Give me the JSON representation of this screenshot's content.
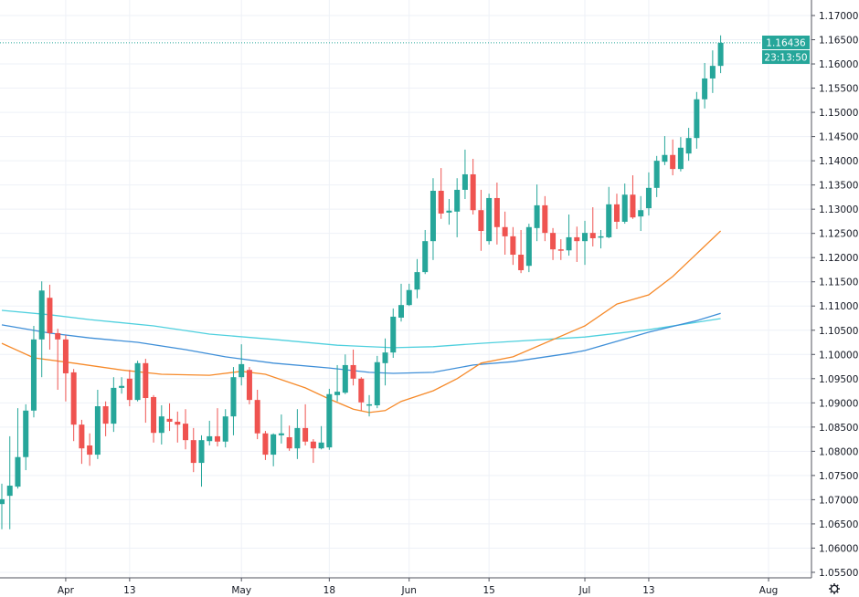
{
  "chart_data": {
    "type": "candlestick",
    "title": "",
    "xlabel": "",
    "ylabel": "",
    "ylim": [
      1.0545,
      1.1725
    ],
    "grid": true,
    "colors": {
      "up": "#26a69a",
      "down": "#ef5350",
      "ma_orange": "#f68a2a",
      "ma_blue": "#3f8fd8",
      "ma_cyan": "#4fd0de",
      "grid": "#eef1f7",
      "axis": "#50535e",
      "last_price": "#26a69a"
    },
    "y_ticks": [
      "1.05500",
      "1.06000",
      "1.06500",
      "1.07000",
      "1.07500",
      "1.08000",
      "1.08500",
      "1.09000",
      "1.09500",
      "1.10000",
      "1.10500",
      "1.11000",
      "1.11500",
      "1.12000",
      "1.12500",
      "1.13000",
      "1.13500",
      "1.14000",
      "1.14500",
      "1.15000",
      "1.15500",
      "1.16000",
      "1.16500",
      "1.17000"
    ],
    "x_ticks": [
      {
        "label": "Apr",
        "date": "04-01"
      },
      {
        "label": "13",
        "date": "04-13"
      },
      {
        "label": "May",
        "date": "05-01"
      },
      {
        "label": "18",
        "date": "05-18"
      },
      {
        "label": "Jun",
        "date": "06-01"
      },
      {
        "label": "15",
        "date": "06-15"
      },
      {
        "label": "Jul",
        "date": "07-01"
      },
      {
        "label": "13",
        "date": "07-13"
      },
      {
        "label": "Aug",
        "date": "08-03"
      }
    ],
    "candles_fields": [
      "date",
      "open",
      "high",
      "low",
      "close"
    ],
    "candles": [
      [
        "03-20",
        1.0691,
        1.0733,
        1.0639,
        1.0701
      ],
      [
        "03-23",
        1.0708,
        1.0831,
        1.0639,
        1.0729
      ],
      [
        "03-24",
        1.0727,
        1.0889,
        1.0723,
        1.0788
      ],
      [
        "03-25",
        1.0788,
        1.0897,
        1.0761,
        1.0884
      ],
      [
        "03-26",
        1.0884,
        1.1059,
        1.087,
        1.1031
      ],
      [
        "03-27",
        1.1031,
        1.1151,
        1.0953,
        1.1132
      ],
      [
        "03-30",
        1.1117,
        1.1144,
        1.101,
        1.1044
      ],
      [
        "03-31",
        1.1044,
        1.1053,
        1.0927,
        1.1031
      ],
      [
        "04-01",
        1.1031,
        1.104,
        1.0903,
        1.0961
      ],
      [
        "04-02",
        1.0963,
        1.097,
        1.0821,
        1.0855
      ],
      [
        "04-03",
        1.0855,
        1.0865,
        1.0774,
        1.0806
      ],
      [
        "04-06",
        1.0812,
        1.0837,
        1.077,
        1.0793
      ],
      [
        "04-07",
        1.0793,
        1.0927,
        1.0784,
        1.0893
      ],
      [
        "04-08",
        1.0893,
        1.0903,
        1.0831,
        1.0857
      ],
      [
        "04-09",
        1.0857,
        1.0953,
        1.084,
        1.0931
      ],
      [
        "04-10",
        1.0931,
        1.0953,
        1.0919,
        1.0935
      ],
      [
        "04-13",
        1.095,
        1.0968,
        1.0893,
        1.0906
      ],
      [
        "04-14",
        1.0906,
        1.0987,
        1.0903,
        1.0982
      ],
      [
        "04-15",
        1.0982,
        1.0991,
        1.0859,
        1.091
      ],
      [
        "04-16",
        1.0912,
        1.0916,
        1.0818,
        1.0838
      ],
      [
        "04-17",
        1.0838,
        1.0895,
        1.0814,
        1.0872
      ],
      [
        "04-20",
        1.0867,
        1.0899,
        1.0842,
        1.0861
      ],
      [
        "04-21",
        1.0861,
        1.0882,
        1.0818,
        1.0855
      ],
      [
        "04-22",
        1.0857,
        1.0887,
        1.0804,
        1.0823
      ],
      [
        "04-23",
        1.0823,
        1.0848,
        1.0757,
        1.0776
      ],
      [
        "04-24",
        1.0776,
        1.0833,
        1.0727,
        1.0823
      ],
      [
        "04-27",
        1.0821,
        1.0863,
        1.0812,
        1.0831
      ],
      [
        "04-28",
        1.0831,
        1.0889,
        1.081,
        1.082
      ],
      [
        "04-29",
        1.082,
        1.0887,
        1.0808,
        1.0872
      ],
      [
        "04-30",
        1.0872,
        1.0974,
        1.0833,
        1.0953
      ],
      [
        "05-01",
        1.0953,
        1.1021,
        1.0936,
        1.098
      ],
      [
        "05-04",
        1.0968,
        1.0974,
        1.0897,
        1.0906
      ],
      [
        "05-05",
        1.0906,
        1.0927,
        1.0825,
        1.0837
      ],
      [
        "05-06",
        1.0837,
        1.0842,
        1.0782,
        1.0793
      ],
      [
        "05-07",
        1.0793,
        1.0837,
        1.0769,
        1.0835
      ],
      [
        "05-08",
        1.0833,
        1.0876,
        1.0816,
        1.0837
      ],
      [
        "05-11",
        1.0829,
        1.0853,
        1.0801,
        1.0806
      ],
      [
        "05-12",
        1.0806,
        1.0887,
        1.0784,
        1.0848
      ],
      [
        "05-13",
        1.0848,
        1.0897,
        1.0812,
        1.082
      ],
      [
        "05-14",
        1.082,
        1.0825,
        1.0776,
        1.0806
      ],
      [
        "05-15",
        1.0806,
        1.0852,
        1.0804,
        1.0818
      ],
      [
        "05-18",
        1.0808,
        1.0929,
        1.0803,
        1.0918
      ],
      [
        "05-19",
        1.0916,
        1.0978,
        1.0903,
        1.0923
      ],
      [
        "05-20",
        1.0921,
        1.1,
        1.0918,
        1.0978
      ],
      [
        "05-21",
        1.0978,
        1.101,
        1.0936,
        1.095
      ],
      [
        "05-22",
        1.095,
        1.0953,
        1.0884,
        1.0901
      ],
      [
        "05-25",
        1.0895,
        1.0916,
        1.0872,
        1.0897
      ],
      [
        "05-26",
        1.0895,
        1.0997,
        1.0889,
        1.0984
      ],
      [
        "05-27",
        1.0982,
        1.1033,
        1.0936,
        1.1004
      ],
      [
        "05-28",
        1.1004,
        1.1095,
        1.0993,
        1.1078
      ],
      [
        "05-29",
        1.1076,
        1.1146,
        1.1068,
        1.1102
      ],
      [
        "06-01",
        1.1102,
        1.1146,
        1.11,
        1.1133
      ],
      [
        "06-02",
        1.1134,
        1.1197,
        1.1116,
        1.117
      ],
      [
        "06-03",
        1.117,
        1.1257,
        1.1166,
        1.1234
      ],
      [
        "06-04",
        1.1234,
        1.1364,
        1.1195,
        1.1338
      ],
      [
        "06-05",
        1.1338,
        1.1385,
        1.128,
        1.1291
      ],
      [
        "06-08",
        1.1293,
        1.1321,
        1.1268,
        1.1297
      ],
      [
        "06-09",
        1.1295,
        1.1364,
        1.1242,
        1.134
      ],
      [
        "06-10",
        1.134,
        1.1423,
        1.1321,
        1.1372
      ],
      [
        "06-11",
        1.1372,
        1.1404,
        1.1289,
        1.1298
      ],
      [
        "06-12",
        1.1298,
        1.134,
        1.1214,
        1.1255
      ],
      [
        "06-15",
        1.1234,
        1.1332,
        1.1227,
        1.1323
      ],
      [
        "06-16",
        1.1323,
        1.1355,
        1.1227,
        1.1263
      ],
      [
        "06-17",
        1.1263,
        1.1295,
        1.1206,
        1.1244
      ],
      [
        "06-18",
        1.1244,
        1.1263,
        1.1185,
        1.1206
      ],
      [
        "06-19",
        1.1206,
        1.1257,
        1.1168,
        1.1174
      ],
      [
        "06-22",
        1.1183,
        1.127,
        1.117,
        1.1263
      ],
      [
        "06-23",
        1.1261,
        1.1351,
        1.1234,
        1.1308
      ],
      [
        "06-24",
        1.1308,
        1.1327,
        1.1234,
        1.1251
      ],
      [
        "06-25",
        1.1251,
        1.1261,
        1.1195,
        1.1217
      ],
      [
        "06-26",
        1.1217,
        1.1238,
        1.1195,
        1.1215
      ],
      [
        "06-29",
        1.1215,
        1.1289,
        1.1204,
        1.1242
      ],
      [
        "06-30",
        1.1242,
        1.1264,
        1.1191,
        1.1234
      ],
      [
        "07-01",
        1.1234,
        1.1276,
        1.1185,
        1.1251
      ],
      [
        "07-02",
        1.1251,
        1.1304,
        1.1223,
        1.124
      ],
      [
        "07-03",
        1.1242,
        1.1257,
        1.1219,
        1.1244
      ],
      [
        "07-06",
        1.1242,
        1.1346,
        1.124,
        1.131
      ],
      [
        "07-07",
        1.131,
        1.1332,
        1.1259,
        1.1274
      ],
      [
        "07-08",
        1.1274,
        1.1353,
        1.127,
        1.133
      ],
      [
        "07-09",
        1.133,
        1.137,
        1.128,
        1.1283
      ],
      [
        "07-10",
        1.1285,
        1.1327,
        1.1255,
        1.1298
      ],
      [
        "07-13",
        1.1302,
        1.1376,
        1.1287,
        1.1344
      ],
      [
        "07-14",
        1.1344,
        1.141,
        1.1325,
        1.14
      ],
      [
        "07-15",
        1.1398,
        1.1451,
        1.1391,
        1.1412
      ],
      [
        "07-16",
        1.1412,
        1.1444,
        1.137,
        1.1383
      ],
      [
        "07-17",
        1.1383,
        1.1449,
        1.1378,
        1.1427
      ],
      [
        "07-20",
        1.1415,
        1.1468,
        1.14,
        1.1447
      ],
      [
        "07-21",
        1.1447,
        1.1542,
        1.1425,
        1.1527
      ],
      [
        "07-22",
        1.1527,
        1.1602,
        1.1508,
        1.157
      ],
      [
        "07-23",
        1.157,
        1.1628,
        1.154,
        1.1596
      ],
      [
        "07-24",
        1.1596,
        1.1659,
        1.1581,
        1.16436
      ]
    ],
    "moving_averages": [
      {
        "color_key": "ma_cyan",
        "points": [
          [
            "03-20",
            1.1091
          ],
          [
            "03-30",
            1.1082
          ],
          [
            "04-06",
            1.1072
          ],
          [
            "04-16",
            1.1059
          ],
          [
            "04-27",
            1.1042
          ],
          [
            "05-07",
            1.1031
          ],
          [
            "05-19",
            1.1019
          ],
          [
            "05-28",
            1.1014
          ],
          [
            "06-04",
            1.1016
          ],
          [
            "06-12",
            1.1023
          ],
          [
            "06-18",
            1.1027
          ],
          [
            "07-01",
            1.1036
          ],
          [
            "07-13",
            1.1051
          ],
          [
            "07-24",
            1.1074
          ]
        ]
      },
      {
        "color_key": "ma_blue",
        "points": [
          [
            "03-20",
            1.1061
          ],
          [
            "03-30",
            1.1044
          ],
          [
            "04-06",
            1.1034
          ],
          [
            "04-14",
            1.1025
          ],
          [
            "04-22",
            1.101
          ],
          [
            "04-29",
            1.0995
          ],
          [
            "05-07",
            1.0982
          ],
          [
            "05-18",
            1.0972
          ],
          [
            "05-25",
            1.0963
          ],
          [
            "05-28",
            1.0961
          ],
          [
            "06-04",
            1.0963
          ],
          [
            "06-11",
            1.0978
          ],
          [
            "06-18",
            1.0985
          ],
          [
            "06-29",
            1.1002
          ],
          [
            "07-01",
            1.1008
          ],
          [
            "07-13",
            1.1046
          ],
          [
            "07-21",
            1.107
          ],
          [
            "07-24",
            1.1085
          ]
        ]
      },
      {
        "color_key": "ma_orange",
        "points": [
          [
            "03-20",
            1.1023
          ],
          [
            "03-26",
            1.0993
          ],
          [
            "04-02",
            1.0982
          ],
          [
            "04-10",
            1.0968
          ],
          [
            "04-17",
            1.0959
          ],
          [
            "04-27",
            1.0957
          ],
          [
            "05-01",
            1.0965
          ],
          [
            "05-06",
            1.0959
          ],
          [
            "05-13",
            1.0931
          ],
          [
            "05-18",
            1.0908
          ],
          [
            "05-21",
            1.0887
          ],
          [
            "05-25",
            1.088
          ],
          [
            "05-27",
            1.0884
          ],
          [
            "05-29",
            1.0903
          ],
          [
            "06-04",
            1.0925
          ],
          [
            "06-09",
            1.095
          ],
          [
            "06-12",
            1.0982
          ],
          [
            "06-18",
            1.0995
          ],
          [
            "07-01",
            1.1059
          ],
          [
            "07-07",
            1.1104
          ],
          [
            "07-13",
            1.1123
          ],
          [
            "07-16",
            1.1161
          ],
          [
            "07-24",
            1.1255
          ]
        ]
      }
    ],
    "last_price": {
      "value": "1.16436",
      "countdown": "23:13:50"
    },
    "icons": {
      "settings": "gear-icon"
    }
  }
}
